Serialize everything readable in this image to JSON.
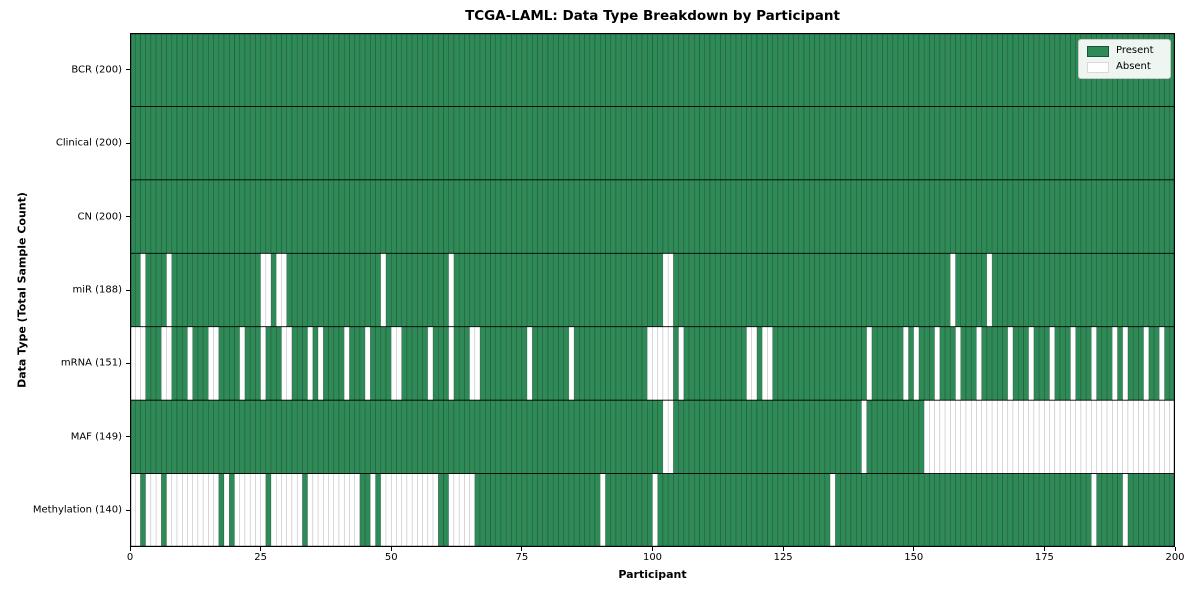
{
  "colors": {
    "present": "#2e8b57",
    "absent": "#ffffff",
    "cell_edge": "#000000",
    "row_divider": "#000000",
    "plot_border": "#000000"
  },
  "legend": {
    "present_label": "Present",
    "absent_label": "Absent",
    "position": "upper right"
  },
  "chart_data": {
    "type": "heatmap",
    "title": "TCGA-LAML: Data Type Breakdown by Participant",
    "xlabel": "Participant",
    "ylabel": "Data Type (Total Sample Count)",
    "n_participants": 200,
    "x_range": [
      0,
      200
    ],
    "x_ticks": [
      0,
      25,
      50,
      75,
      100,
      125,
      150,
      175,
      200
    ],
    "grid": false,
    "legend": [
      "Present",
      "Absent"
    ],
    "legend_position": "upper right",
    "value_encoding": {
      "present": 1,
      "absent": 0
    },
    "rows": [
      {
        "label": "BCR (200)",
        "data_type": "BCR",
        "present_count": 200,
        "absent_participants": []
      },
      {
        "label": "Clinical (200)",
        "data_type": "Clinical",
        "present_count": 200,
        "absent_participants": []
      },
      {
        "label": "CN (200)",
        "data_type": "CN",
        "present_count": 200,
        "absent_participants": []
      },
      {
        "label": "miR (188)",
        "data_type": "miR",
        "present_count": 188,
        "absent_participants": [
          2,
          7,
          25,
          26,
          28,
          29,
          48,
          61,
          102,
          103,
          157,
          164
        ]
      },
      {
        "label": "mRNA (151)",
        "data_type": "mRNA",
        "present_count": 151,
        "absent_participants": [
          0,
          1,
          2,
          6,
          7,
          11,
          15,
          16,
          21,
          25,
          29,
          30,
          34,
          36,
          41,
          45,
          50,
          51,
          57,
          61,
          65,
          66,
          76,
          84,
          99,
          100,
          101,
          102,
          103,
          105,
          118,
          119,
          121,
          122,
          141,
          148,
          150,
          154,
          158,
          162,
          168,
          172,
          176,
          180,
          184,
          188,
          190,
          194,
          197
        ]
      },
      {
        "label": "MAF (149)",
        "data_type": "MAF",
        "present_count": 149,
        "absent_participants": [
          102,
          103,
          140,
          152,
          153,
          154,
          155,
          156,
          157,
          158,
          159,
          160,
          161,
          162,
          163,
          164,
          165,
          166,
          167,
          168,
          169,
          170,
          171,
          172,
          173,
          174,
          175,
          176,
          177,
          178,
          179,
          180,
          181,
          182,
          183,
          184,
          185,
          186,
          187,
          188,
          189,
          190,
          191,
          192,
          193,
          194,
          195,
          196,
          197,
          198,
          199
        ]
      },
      {
        "label": "Methylation (140)",
        "data_type": "Methylation",
        "present_count": 140,
        "absent_participants": [
          0,
          1,
          3,
          4,
          5,
          7,
          8,
          9,
          10,
          11,
          12,
          13,
          14,
          15,
          16,
          18,
          20,
          21,
          22,
          23,
          24,
          25,
          27,
          28,
          29,
          30,
          31,
          32,
          34,
          35,
          36,
          37,
          38,
          39,
          40,
          41,
          42,
          43,
          46,
          48,
          49,
          50,
          51,
          52,
          53,
          54,
          55,
          56,
          57,
          58,
          61,
          62,
          63,
          64,
          65,
          90,
          100,
          134,
          184,
          190
        ]
      }
    ]
  }
}
